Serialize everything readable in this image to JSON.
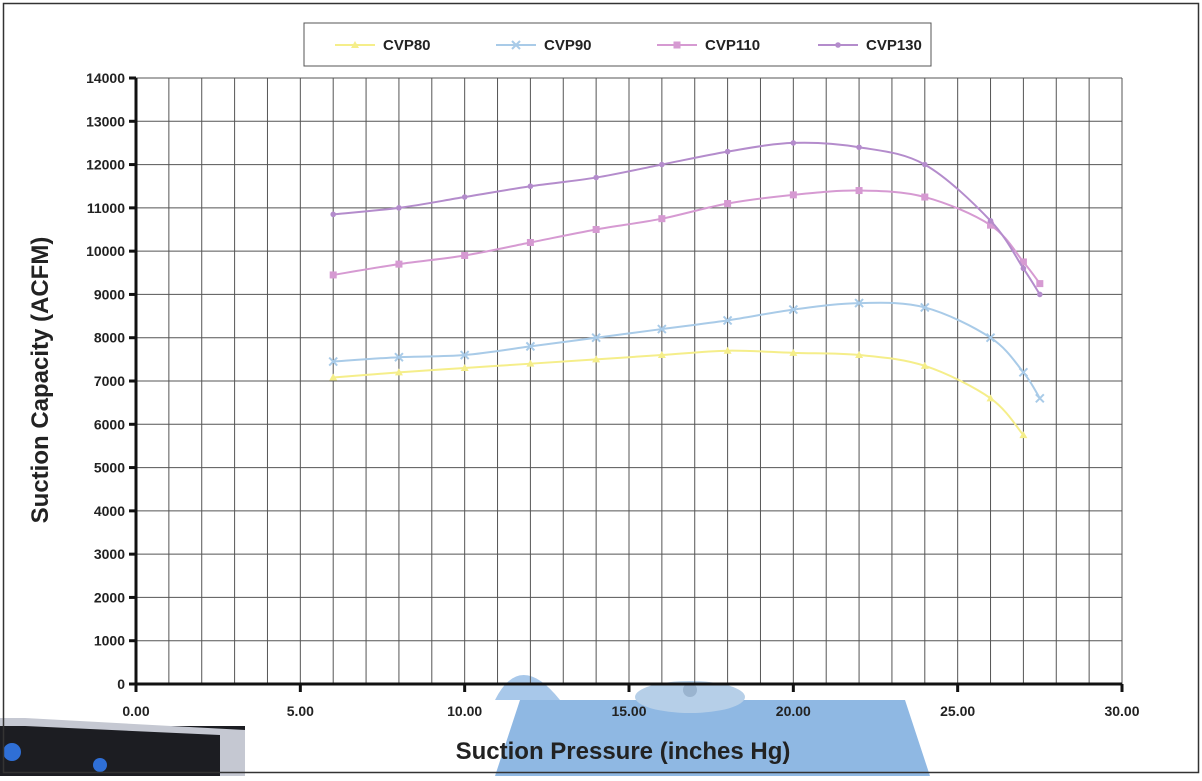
{
  "chart_data": {
    "type": "line",
    "xlabel": "Suction Pressure (inches Hg)",
    "ylabel": "Suction Capacity (ACFM)",
    "xlim": [
      0,
      30
    ],
    "ylim": [
      0,
      14000
    ],
    "x_ticks": [
      "0.00",
      "5.00",
      "10.00",
      "15.00",
      "20.00",
      "25.00",
      "30.00"
    ],
    "y_ticks": [
      "0",
      "1000",
      "2000",
      "3000",
      "4000",
      "5000",
      "6000",
      "7000",
      "8000",
      "9000",
      "10000",
      "11000",
      "12000",
      "13000",
      "14000"
    ],
    "grid": true,
    "legend_position": "top",
    "series": [
      {
        "name": "CVP80",
        "color": "#f5ee8a",
        "marker": "triangle",
        "points": [
          [
            6,
            7080
          ],
          [
            8,
            7200
          ],
          [
            10,
            7300
          ],
          [
            12,
            7400
          ],
          [
            14,
            7500
          ],
          [
            16,
            7600
          ],
          [
            18,
            7700
          ],
          [
            20,
            7650
          ],
          [
            22,
            7600
          ],
          [
            24,
            7350
          ],
          [
            26,
            6600
          ],
          [
            27,
            5750
          ]
        ]
      },
      {
        "name": "CVP90",
        "color": "#a9cbe8",
        "marker": "x",
        "points": [
          [
            6,
            7450
          ],
          [
            8,
            7550
          ],
          [
            10,
            7600
          ],
          [
            12,
            7800
          ],
          [
            14,
            8000
          ],
          [
            16,
            8200
          ],
          [
            18,
            8400
          ],
          [
            20,
            8650
          ],
          [
            22,
            8800
          ],
          [
            24,
            8700
          ],
          [
            26,
            8000
          ],
          [
            27,
            7200
          ],
          [
            27.5,
            6600
          ]
        ]
      },
      {
        "name": "CVP110",
        "color": "#d69ad2",
        "marker": "square",
        "points": [
          [
            6,
            9450
          ],
          [
            8,
            9700
          ],
          [
            10,
            9900
          ],
          [
            12,
            10200
          ],
          [
            14,
            10500
          ],
          [
            16,
            10750
          ],
          [
            18,
            11100
          ],
          [
            20,
            11300
          ],
          [
            22,
            11400
          ],
          [
            24,
            11250
          ],
          [
            26,
            10600
          ],
          [
            27,
            9750
          ],
          [
            27.5,
            9250
          ]
        ]
      },
      {
        "name": "CVP130",
        "color": "#b48ccc",
        "marker": "dot",
        "points": [
          [
            6,
            10850
          ],
          [
            8,
            11000
          ],
          [
            10,
            11250
          ],
          [
            12,
            11500
          ],
          [
            14,
            11700
          ],
          [
            16,
            12000
          ],
          [
            18,
            12300
          ],
          [
            20,
            12500
          ],
          [
            22,
            12400
          ],
          [
            24,
            12000
          ],
          [
            26,
            10700
          ],
          [
            27,
            9600
          ],
          [
            27.5,
            9000
          ]
        ]
      }
    ]
  }
}
